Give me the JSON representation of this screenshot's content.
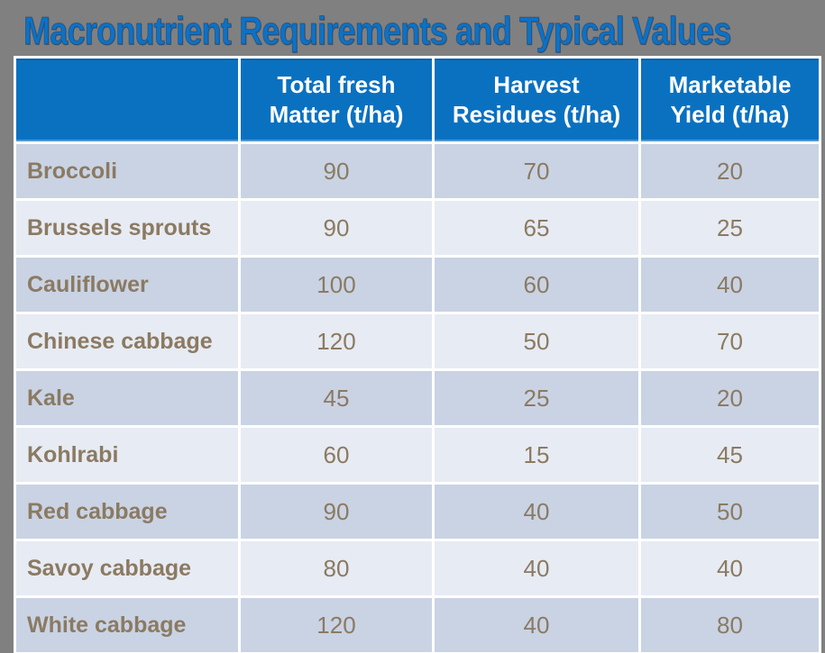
{
  "title": "Macronutrient Requirements and Typical Values",
  "colors": {
    "background": "#808080",
    "title_blue": "#0C72C6",
    "header_blue": "#0A71C1",
    "row_dark": "#C9D3E4",
    "row_light": "#E7EBF3",
    "text_brown": "#8B7A62",
    "grid_white": "#FFFFFF"
  },
  "chart_data": {
    "type": "table",
    "title": "Macronutrient Requirements and Typical Values",
    "columns": [
      "",
      "Total fresh Matter (t/ha)",
      "Harvest Residues (t/ha)",
      "Marketable Yield (t/ha)"
    ],
    "header_lines": [
      {
        "line1": "",
        "line2": ""
      },
      {
        "line1": "Total fresh",
        "line2": "Matter (t/ha)"
      },
      {
        "line1": "Harvest",
        "line2": "Residues (t/ha)"
      },
      {
        "line1": "Marketable",
        "line2": "Yield (t/ha)"
      }
    ],
    "rows": [
      {
        "label": "Broccoli",
        "values": [
          90,
          70,
          20
        ]
      },
      {
        "label": "Brussels sprouts",
        "values": [
          90,
          65,
          25
        ]
      },
      {
        "label": "Cauliflower",
        "values": [
          100,
          60,
          40
        ]
      },
      {
        "label": "Chinese cabbage",
        "values": [
          120,
          50,
          70
        ]
      },
      {
        "label": "Kale",
        "values": [
          45,
          25,
          20
        ]
      },
      {
        "label": "Kohlrabi",
        "values": [
          60,
          15,
          45
        ]
      },
      {
        "label": "Red cabbage",
        "values": [
          90,
          40,
          50
        ]
      },
      {
        "label": "Savoy cabbage",
        "values": [
          80,
          40,
          40
        ]
      },
      {
        "label": "White cabbage",
        "values": [
          120,
          40,
          80
        ]
      }
    ]
  }
}
